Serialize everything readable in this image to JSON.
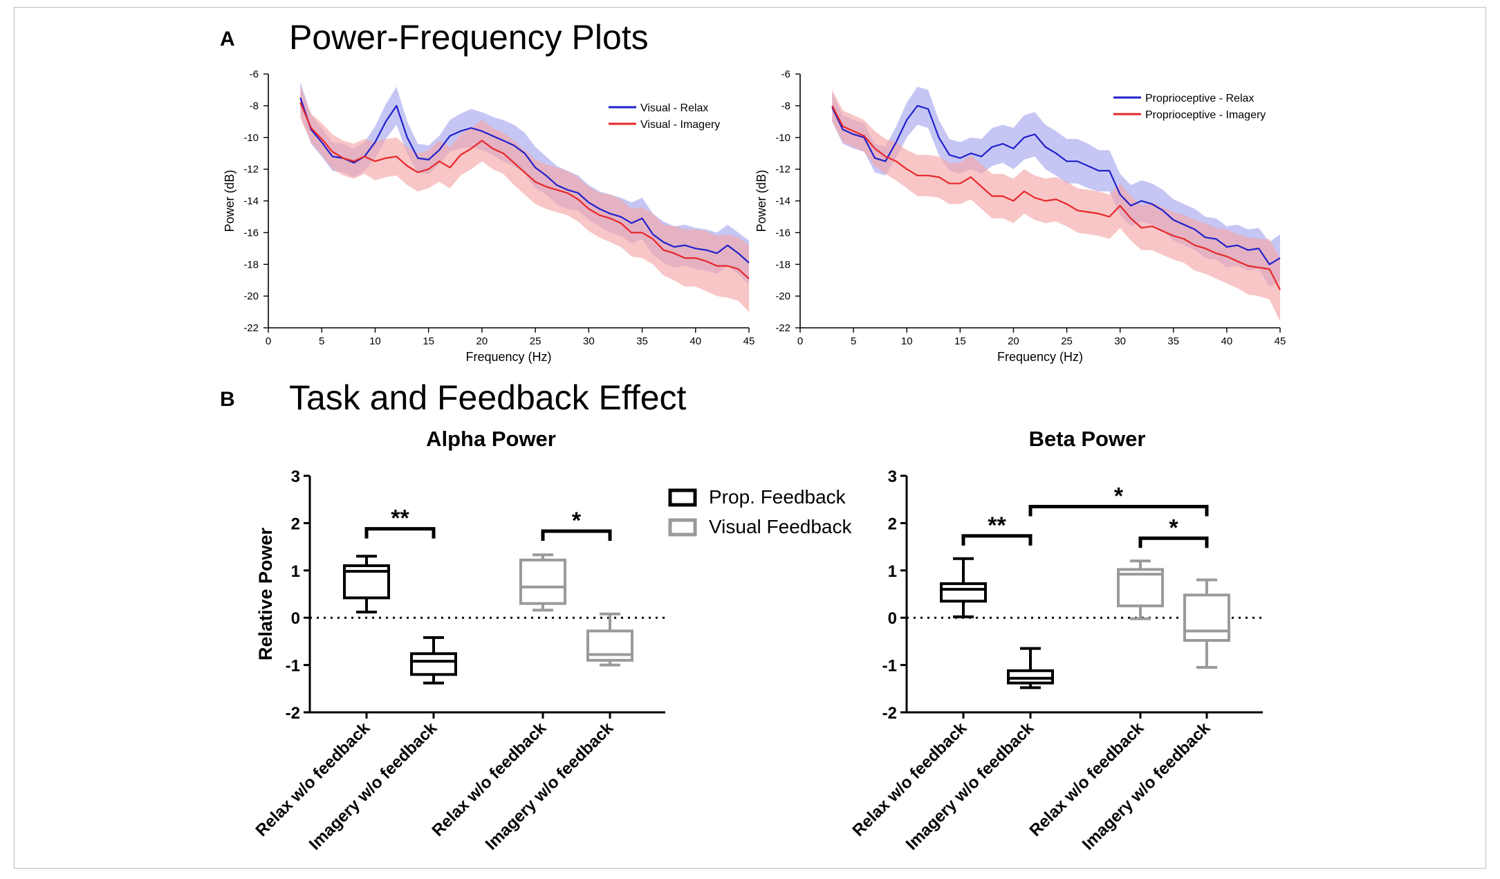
{
  "panel_a": {
    "letter": "A",
    "title": "Power-Frequency Plots"
  },
  "panel_b": {
    "letter": "B",
    "title": "Task and Feedback Effect",
    "legend": [
      {
        "label": "Prop. Feedback",
        "color": "#000000"
      },
      {
        "label": "Visual Feedback",
        "color": "#9a9a9a"
      }
    ]
  },
  "colors": {
    "relax": "#1f1fcc",
    "imagery": "#e8262a",
    "relax_band": "#a8a8ee",
    "imagery_band": "#f4a8a8",
    "prop": "#000000",
    "visual": "#9a9a9a"
  },
  "chart_data": [
    {
      "type": "line",
      "panel": "A-left",
      "xlabel": "Frequency (Hz)",
      "ylabel": "Power (dB)",
      "xlim": [
        0,
        45
      ],
      "ylim": [
        -22,
        -6
      ],
      "xticks": [
        0,
        5,
        10,
        15,
        20,
        25,
        30,
        35,
        40,
        45
      ],
      "yticks": [
        -6,
        -8,
        -10,
        -12,
        -14,
        -16,
        -18,
        -20,
        -22
      ],
      "legend_position": "top-right",
      "x": [
        3,
        4,
        5,
        6,
        7,
        8,
        9,
        10,
        11,
        12,
        13,
        14,
        15,
        16,
        17,
        18,
        19,
        20,
        21,
        22,
        23,
        24,
        25,
        26,
        27,
        28,
        29,
        30,
        31,
        32,
        33,
        34,
        35,
        36,
        37,
        38,
        39,
        40,
        41,
        42,
        43,
        44,
        45
      ],
      "series": [
        {
          "name": "Visual - Relax",
          "color": "#1f1fcc",
          "y": [
            -7.5,
            -9.5,
            -10.3,
            -11.2,
            -11.3,
            -11.6,
            -11.2,
            -10.3,
            -9.0,
            -8.0,
            -10.0,
            -11.3,
            -11.4,
            -10.8,
            -9.9,
            -9.6,
            -9.4,
            -9.6,
            -9.9,
            -10.2,
            -10.5,
            -11.0,
            -11.9,
            -12.4,
            -13.0,
            -13.3,
            -13.5,
            -14.1,
            -14.5,
            -14.8,
            -15.0,
            -15.4,
            -15.1,
            -16.1,
            -16.6,
            -16.9,
            -16.8,
            -17.0,
            -17.1,
            -17.3,
            -16.8,
            -17.3,
            -17.9
          ],
          "band": [
            1.0,
            0.9,
            0.9,
            0.9,
            0.9,
            0.9,
            0.9,
            1.0,
            1.1,
            1.2,
            1.0,
            0.9,
            0.9,
            0.9,
            1.0,
            1.1,
            1.2,
            1.2,
            1.2,
            1.3,
            1.3,
            1.3,
            1.3,
            1.2,
            1.2,
            1.2,
            1.1,
            1.1,
            1.1,
            1.2,
            1.2,
            1.3,
            1.3,
            1.3,
            1.3,
            1.3,
            1.3,
            1.3,
            1.3,
            1.3,
            1.3,
            1.3,
            1.4
          ]
        },
        {
          "name": "Visual - Imagery",
          "color": "#e8262a",
          "y": [
            -7.8,
            -9.4,
            -10.1,
            -10.9,
            -11.3,
            -11.5,
            -11.2,
            -11.5,
            -11.3,
            -11.2,
            -11.8,
            -12.2,
            -12.0,
            -11.5,
            -11.9,
            -11.1,
            -10.7,
            -10.2,
            -10.7,
            -11.0,
            -11.6,
            -12.2,
            -12.8,
            -13.1,
            -13.3,
            -13.5,
            -13.9,
            -14.5,
            -14.9,
            -15.1,
            -15.4,
            -16.0,
            -16.0,
            -16.4,
            -17.1,
            -17.3,
            -17.6,
            -17.6,
            -17.8,
            -18.1,
            -18.1,
            -18.3,
            -18.9
          ],
          "band": [
            1.0,
            0.9,
            1.0,
            1.1,
            1.1,
            1.1,
            1.1,
            1.2,
            1.2,
            1.2,
            1.2,
            1.2,
            1.2,
            1.3,
            1.3,
            1.3,
            1.3,
            1.3,
            1.3,
            1.3,
            1.4,
            1.4,
            1.4,
            1.4,
            1.4,
            1.4,
            1.4,
            1.4,
            1.4,
            1.5,
            1.5,
            1.5,
            1.6,
            1.6,
            1.6,
            1.7,
            1.8,
            1.8,
            1.9,
            1.9,
            2.0,
            2.0,
            2.1
          ]
        }
      ]
    },
    {
      "type": "line",
      "panel": "A-right",
      "xlabel": "Frequency (Hz)",
      "ylabel": "Power (dB)",
      "xlim": [
        0,
        45
      ],
      "ylim": [
        -22,
        -6
      ],
      "xticks": [
        0,
        5,
        10,
        15,
        20,
        25,
        30,
        35,
        40,
        45
      ],
      "yticks": [
        -6,
        -8,
        -10,
        -12,
        -14,
        -16,
        -18,
        -20,
        -22
      ],
      "legend_position": "top-right",
      "x": [
        3,
        4,
        5,
        6,
        7,
        8,
        9,
        10,
        11,
        12,
        13,
        14,
        15,
        16,
        17,
        18,
        19,
        20,
        21,
        22,
        23,
        24,
        25,
        26,
        27,
        28,
        29,
        30,
        31,
        32,
        33,
        34,
        35,
        36,
        37,
        38,
        39,
        40,
        41,
        42,
        43,
        44,
        45
      ],
      "series": [
        {
          "name": "Proprioceptive - Relax",
          "color": "#1f1fcc",
          "y": [
            -8.1,
            -9.5,
            -9.8,
            -10.0,
            -11.3,
            -11.5,
            -10.3,
            -8.9,
            -8.0,
            -8.2,
            -10.0,
            -11.1,
            -11.3,
            -11.0,
            -11.2,
            -10.6,
            -10.4,
            -10.7,
            -10.0,
            -9.8,
            -10.6,
            -11.0,
            -11.5,
            -11.5,
            -11.8,
            -12.1,
            -12.1,
            -13.6,
            -14.3,
            -14.0,
            -14.2,
            -14.6,
            -15.2,
            -15.5,
            -15.8,
            -16.3,
            -16.4,
            -16.9,
            -16.8,
            -17.1,
            -17.0,
            -18.0,
            -17.6
          ],
          "band": [
            0.9,
            0.9,
            0.9,
            0.9,
            0.9,
            0.9,
            1.0,
            1.1,
            1.2,
            1.2,
            1.1,
            1.0,
            1.0,
            1.0,
            1.1,
            1.2,
            1.2,
            1.3,
            1.4,
            1.4,
            1.4,
            1.4,
            1.4,
            1.4,
            1.4,
            1.3,
            1.3,
            1.3,
            1.3,
            1.3,
            1.3,
            1.3,
            1.3,
            1.3,
            1.3,
            1.3,
            1.3,
            1.3,
            1.3,
            1.3,
            1.3,
            1.4,
            1.5
          ]
        },
        {
          "name": "Proprioceptive - Imagery",
          "color": "#e8262a",
          "y": [
            -8.0,
            -9.3,
            -9.6,
            -9.9,
            -10.7,
            -11.2,
            -11.5,
            -12.0,
            -12.4,
            -12.4,
            -12.5,
            -12.9,
            -12.9,
            -12.5,
            -13.1,
            -13.7,
            -13.7,
            -14.0,
            -13.4,
            -13.8,
            -14.0,
            -13.9,
            -14.2,
            -14.6,
            -14.7,
            -14.8,
            -15.0,
            -14.3,
            -15.1,
            -15.7,
            -15.6,
            -15.9,
            -16.2,
            -16.4,
            -16.8,
            -17.0,
            -17.3,
            -17.5,
            -17.8,
            -18.1,
            -18.2,
            -18.3,
            -19.6
          ],
          "band": [
            1.0,
            1.0,
            1.0,
            1.0,
            1.1,
            1.1,
            1.2,
            1.2,
            1.3,
            1.3,
            1.3,
            1.3,
            1.3,
            1.4,
            1.4,
            1.4,
            1.4,
            1.4,
            1.4,
            1.4,
            1.4,
            1.4,
            1.4,
            1.4,
            1.4,
            1.4,
            1.4,
            1.4,
            1.4,
            1.4,
            1.5,
            1.5,
            1.5,
            1.5,
            1.6,
            1.6,
            1.6,
            1.7,
            1.7,
            1.8,
            1.8,
            1.9,
            2.0
          ]
        }
      ]
    },
    {
      "type": "box",
      "panel": "B-left",
      "title": "Alpha Power",
      "ylabel": "Relative Power",
      "ylim": [
        -2,
        3
      ],
      "yticks": [
        3,
        2,
        1,
        0,
        -1,
        -2
      ],
      "reference_line": 0,
      "categories": [
        "Relax w/o feedback",
        "Imagery w/o feedback",
        "Relax w/o feedback",
        "Imagery w/o feedback"
      ],
      "boxes": [
        {
          "group": "Prop. Feedback",
          "min": 0.12,
          "q1": 0.42,
          "median": 0.98,
          "q3": 1.1,
          "max": 1.3
        },
        {
          "group": "Prop. Feedback",
          "min": -1.38,
          "q1": -1.2,
          "median": -0.92,
          "q3": -0.76,
          "max": -0.42
        },
        {
          "group": "Visual Feedback",
          "min": 0.16,
          "q1": 0.3,
          "median": 0.65,
          "q3": 1.22,
          "max": 1.33
        },
        {
          "group": "Visual Feedback",
          "min": -1.0,
          "q1": -0.9,
          "median": -0.78,
          "q3": -0.28,
          "max": 0.08
        }
      ],
      "significance": [
        {
          "from": 0,
          "to": 1,
          "label": "**",
          "y": 1.88
        },
        {
          "from": 2,
          "to": 3,
          "label": "*",
          "y": 1.83
        }
      ]
    },
    {
      "type": "box",
      "panel": "B-right",
      "title": "Beta Power",
      "ylabel": "",
      "ylim": [
        -2,
        3
      ],
      "yticks": [
        3,
        2,
        1,
        0,
        -1,
        -2
      ],
      "reference_line": 0,
      "categories": [
        "Relax w/o feedback",
        "Imagery w/o feedback",
        "Relax w/o feedback",
        "Imagery w/o feedback"
      ],
      "boxes": [
        {
          "group": "Prop. Feedback",
          "min": 0.02,
          "q1": 0.35,
          "median": 0.6,
          "q3": 0.72,
          "max": 1.25
        },
        {
          "group": "Prop. Feedback",
          "min": -1.48,
          "q1": -1.38,
          "median": -1.28,
          "q3": -1.12,
          "max": -0.65
        },
        {
          "group": "Visual Feedback",
          "min": -0.02,
          "q1": 0.25,
          "median": 0.92,
          "q3": 1.02,
          "max": 1.2
        },
        {
          "group": "Visual Feedback",
          "min": -1.05,
          "q1": -0.48,
          "median": -0.28,
          "q3": 0.48,
          "max": 0.8
        }
      ],
      "significance": [
        {
          "from": 0,
          "to": 1,
          "label": "**",
          "y": 1.73
        },
        {
          "from": 1,
          "to": 3,
          "label": "*",
          "y": 2.35
        },
        {
          "from": 2,
          "to": 3,
          "label": "*",
          "y": 1.68
        }
      ]
    }
  ]
}
